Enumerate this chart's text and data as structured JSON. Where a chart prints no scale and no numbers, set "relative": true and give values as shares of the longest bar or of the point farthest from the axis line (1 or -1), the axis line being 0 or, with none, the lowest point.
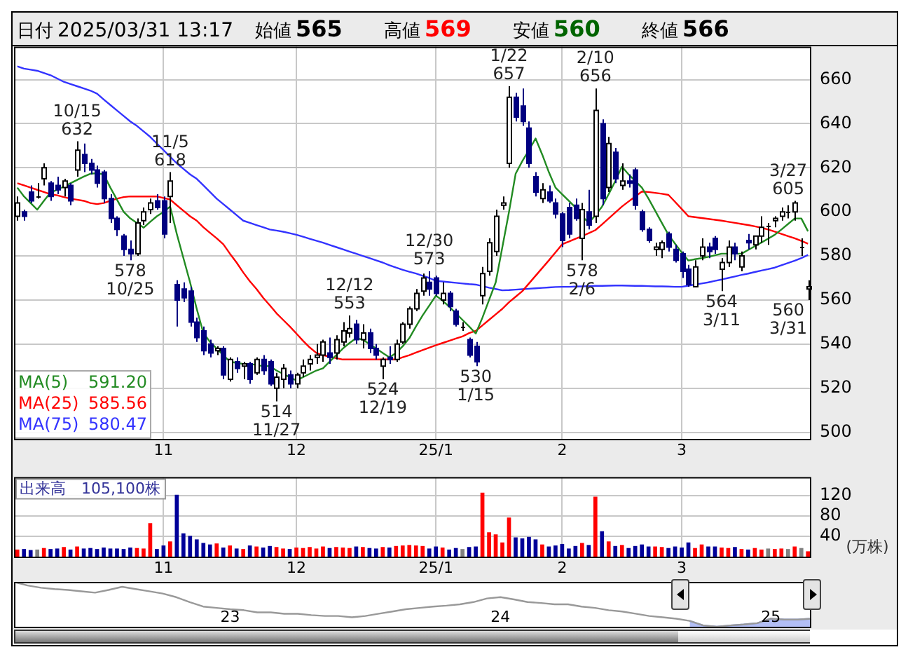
{
  "chart_data": [
    {
      "type": "other",
      "categories": [
        "日付",
        "始値",
        "高値",
        "安値",
        "終値"
      ],
      "value_labels": [
        "2025/03/31 13:17",
        "565",
        "569",
        "560",
        "566"
      ],
      "colors": [
        "#000000",
        "#000000",
        "#ff0000",
        "#006400",
        "#000000"
      ]
    },
    {
      "type": "candlestick",
      "legend": "bottom left",
      "grid": true,
      "ylim": [
        497,
        675
      ],
      "yticks": [
        500,
        520,
        540,
        560,
        580,
        600,
        620,
        640,
        660
      ],
      "categories": [
        null,
        null,
        null,
        null,
        null,
        null,
        null,
        null,
        null,
        null,
        null,
        null,
        null,
        null,
        null,
        null,
        null,
        null,
        null,
        null,
        null,
        null,
        "11",
        null,
        null,
        null,
        null,
        null,
        null,
        null,
        null,
        null,
        null,
        null,
        null,
        null,
        null,
        null,
        null,
        null,
        null,
        null,
        "12",
        null,
        null,
        null,
        null,
        null,
        null,
        null,
        null,
        null,
        null,
        null,
        null,
        null,
        null,
        null,
        null,
        null,
        null,
        null,
        null,
        "25/1",
        null,
        null,
        null,
        null,
        null,
        null,
        null,
        null,
        null,
        null,
        null,
        null,
        null,
        null,
        null,
        null,
        null,
        null,
        "2",
        null,
        null,
        null,
        null,
        null,
        null,
        null,
        null,
        null,
        null,
        null,
        null,
        null,
        null,
        null,
        null,
        null,
        "3",
        null,
        null,
        null,
        null,
        null,
        null,
        null,
        null,
        null,
        null,
        null,
        null,
        null,
        null,
        null,
        null,
        null,
        null,
        null
      ],
      "ohlc": [
        [
          598,
          607,
          596,
          604
        ],
        [
          600,
          601,
          596,
          598
        ],
        [
          609,
          612,
          604,
          605
        ],
        [
          607,
          613,
          606,
          607
        ],
        [
          615,
          622,
          612,
          620
        ],
        [
          613,
          614,
          605,
          607
        ],
        [
          612,
          616,
          608,
          610
        ],
        [
          611,
          615,
          607,
          614
        ],
        [
          612,
          613,
          603,
          605
        ],
        [
          619,
          632,
          616,
          628
        ],
        [
          626,
          631,
          618,
          622
        ],
        [
          622,
          624,
          617,
          619
        ],
        [
          619,
          621,
          611,
          613
        ],
        [
          618,
          619,
          604,
          606
        ],
        [
          606,
          608,
          595,
          597
        ],
        [
          597,
          598,
          589,
          592
        ],
        [
          589,
          590,
          580,
          583
        ],
        [
          583,
          587,
          578,
          581
        ],
        [
          581,
          597,
          580,
          595
        ],
        [
          596,
          602,
          594,
          600
        ],
        [
          601,
          606,
          599,
          604
        ],
        [
          605,
          608,
          601,
          602
        ],
        [
          605,
          607,
          588,
          590
        ],
        [
          607,
          618,
          595,
          614
        ],
        [
          567,
          569,
          548,
          560
        ],
        [
          565,
          568,
          559,
          561
        ],
        [
          564,
          566,
          548,
          550
        ],
        [
          550,
          552,
          541,
          543
        ],
        [
          546,
          548,
          535,
          537
        ],
        [
          540,
          542,
          534,
          536
        ],
        [
          537,
          539,
          535,
          538
        ],
        [
          538,
          539,
          524,
          526
        ],
        [
          524,
          534,
          523,
          533
        ],
        [
          532,
          534,
          527,
          529
        ],
        [
          530,
          532,
          524,
          531
        ],
        [
          531,
          532,
          522,
          524
        ],
        [
          527,
          534,
          526,
          533
        ],
        [
          533,
          535,
          526,
          528
        ],
        [
          532,
          533,
          521,
          522
        ],
        [
          520,
          527,
          514,
          525
        ],
        [
          524,
          531,
          520,
          529
        ],
        [
          526,
          528,
          520,
          522
        ],
        [
          522,
          527,
          520,
          526
        ],
        [
          527,
          533,
          525,
          530
        ],
        [
          531,
          535,
          528,
          533
        ],
        [
          534,
          540,
          531,
          535
        ],
        [
          535,
          542,
          532,
          541
        ],
        [
          536,
          543,
          531,
          534
        ],
        [
          536,
          544,
          533,
          542
        ],
        [
          541,
          550,
          539,
          546
        ],
        [
          545,
          553,
          543,
          547
        ],
        [
          549,
          551,
          540,
          542
        ],
        [
          542,
          549,
          538,
          545
        ],
        [
          545,
          547,
          536,
          538
        ],
        [
          538,
          540,
          533,
          535
        ],
        [
          530,
          534,
          524,
          533
        ],
        [
          534,
          539,
          531,
          533
        ],
        [
          533,
          542,
          532,
          540
        ],
        [
          541,
          550,
          540,
          549
        ],
        [
          549,
          557,
          547,
          556
        ],
        [
          556,
          565,
          555,
          563
        ],
        [
          564,
          572,
          562,
          570
        ],
        [
          568,
          573,
          562,
          565
        ],
        [
          570,
          571,
          562,
          563
        ],
        [
          560,
          568,
          558,
          563
        ],
        [
          563,
          564,
          555,
          557
        ],
        [
          555,
          556,
          548,
          549
        ],
        [
          548,
          550,
          546,
          548
        ],
        [
          542,
          543,
          534,
          535
        ],
        [
          539,
          541,
          530,
          532
        ],
        [
          562,
          575,
          558,
          572
        ],
        [
          573,
          588,
          571,
          586
        ],
        [
          582,
          601,
          580,
          598
        ],
        [
          603,
          607,
          601,
          604
        ],
        [
          622,
          657,
          620,
          652
        ],
        [
          652,
          654,
          641,
          643
        ],
        [
          648,
          656,
          639,
          641
        ],
        [
          638,
          641,
          620,
          622
        ],
        [
          616,
          618,
          607,
          609
        ],
        [
          606,
          613,
          604,
          610
        ],
        [
          609,
          612,
          604,
          605
        ],
        [
          604,
          606,
          597,
          599
        ],
        [
          599,
          600,
          584,
          587
        ],
        [
          602,
          604,
          588,
          590
        ],
        [
          603,
          606,
          596,
          597
        ],
        [
          588,
          604,
          578,
          601
        ],
        [
          600,
          610,
          592,
          594
        ],
        [
          598,
          656,
          595,
          646
        ],
        [
          640,
          642,
          603,
          606
        ],
        [
          611,
          634,
          609,
          631
        ],
        [
          627,
          629,
          613,
          615
        ],
        [
          612,
          622,
          610,
          614
        ],
        [
          614,
          617,
          611,
          613
        ],
        [
          619,
          620,
          601,
          603
        ],
        [
          600,
          601,
          591,
          592
        ],
        [
          592,
          593,
          586,
          587
        ],
        [
          583,
          586,
          580,
          584
        ],
        [
          583,
          587,
          579,
          586
        ],
        [
          590,
          591,
          582,
          584
        ],
        [
          583,
          585,
          577,
          578
        ],
        [
          581,
          582,
          570,
          573
        ],
        [
          574,
          576,
          566,
          567
        ],
        [
          566,
          578,
          566,
          575
        ],
        [
          580,
          588,
          578,
          584
        ],
        [
          584,
          586,
          579,
          582
        ],
        [
          588,
          589,
          581,
          583
        ],
        [
          574,
          579,
          564,
          577
        ],
        [
          577,
          587,
          575,
          584
        ],
        [
          584,
          586,
          578,
          581
        ],
        [
          575,
          582,
          573,
          580
        ],
        [
          587,
          590,
          583,
          586
        ],
        [
          585,
          589,
          583,
          589
        ],
        [
          589,
          598,
          586,
          593
        ],
        [
          594,
          595,
          585,
          594
        ],
        [
          596,
          598,
          593,
          597
        ],
        [
          598,
          602,
          596,
          600
        ],
        [
          600,
          603,
          597,
          600
        ],
        [
          600,
          605,
          596,
          604
        ],
        [
          584,
          588,
          580,
          584
        ],
        [
          565,
          569,
          560,
          566
        ]
      ],
      "annotations": [
        "591.20",
        "585.56",
        "580.47"
      ],
      "colors": [
        "#000000",
        "#000080",
        "#000080",
        "#000000",
        "#000000",
        "#000080",
        "#000080",
        "#000000",
        "#000080",
        "#000000",
        "#000080",
        "#000080",
        "#000080",
        "#000080",
        "#000080",
        "#000080",
        "#000080",
        "#000080",
        "#000000",
        "#000000",
        "#000000",
        "#000080",
        "#000080",
        "#000000",
        "#000080",
        "#000080",
        "#000080",
        "#000080",
        "#000080",
        "#000080",
        "#000000",
        "#000080",
        "#000000",
        "#000080",
        "#000000",
        "#000080",
        "#000000",
        "#000080",
        "#000080",
        "#000000",
        "#000000",
        "#000080",
        "#000000",
        "#000000",
        "#000000",
        "#000000",
        "#000000",
        "#000080",
        "#000000",
        "#000000",
        "#000000",
        "#000080",
        "#000000",
        "#000080",
        "#000080",
        "#000000",
        "#000080",
        "#000000",
        "#000000",
        "#000000",
        "#000000",
        "#000000",
        "#000080",
        "#000080",
        "#000000",
        "#000080",
        "#000080",
        "#000000",
        "#000080",
        "#000080",
        "#000000",
        "#000000",
        "#000000",
        "#000000",
        "#000000",
        "#000080",
        "#000080",
        "#000080",
        "#000080",
        "#000000",
        "#000080",
        "#000080",
        "#000080",
        "#000080",
        "#000080",
        "#000000",
        "#000080",
        "#000000",
        "#000080",
        "#000000",
        "#000080",
        "#000000",
        "#000080",
        "#000080",
        "#000080",
        "#000080",
        "#000000",
        "#000000",
        "#000080",
        "#000080",
        "#000080",
        "#000080",
        "#000000",
        "#000000",
        "#000080",
        "#000080",
        "#000000",
        "#000000",
        "#000080",
        "#000000",
        "#000080",
        "#000000",
        "#000000",
        "#000000",
        "#000000",
        "#000000",
        "#000000",
        "#000000",
        "#000000",
        "#000000"
      ],
      "value_labels": [
        null,
        null,
        null,
        null,
        null,
        null,
        null,
        null,
        null,
        "10/15\n632",
        null,
        null,
        null,
        null,
        null,
        null,
        null,
        "578\n10/25",
        null,
        null,
        null,
        null,
        null,
        "11/5\n618",
        null,
        null,
        null,
        null,
        null,
        null,
        null,
        null,
        null,
        null,
        null,
        null,
        null,
        null,
        null,
        "514\n11/27",
        null,
        null,
        null,
        null,
        null,
        null,
        null,
        null,
        null,
        null,
        "12/12\n553",
        null,
        null,
        null,
        null,
        "524\n12/19",
        null,
        null,
        null,
        null,
        null,
        null,
        "12/30\n573",
        null,
        null,
        null,
        null,
        null,
        null,
        "530\n1/15",
        null,
        null,
        null,
        null,
        "1/22\n657",
        null,
        null,
        null,
        null,
        null,
        null,
        null,
        null,
        null,
        null,
        "578\n2/6",
        null,
        "2/10\n656",
        null,
        null,
        null,
        null,
        null,
        null,
        null,
        null,
        null,
        null,
        null,
        null,
        null,
        null,
        null,
        null,
        null,
        null,
        "564\n3/11",
        null,
        null,
        null,
        null,
        null,
        null,
        null,
        null,
        null,
        null,
        "3/27\n605",
        null,
        "560\n3/31"
      ],
      "series": [
        {
          "name": "MA(5)",
          "type": "line",
          "color": "#228b22",
          "values": [
            611,
            607,
            604,
            601,
            605,
            608.8,
            610,
            611.5,
            613,
            614.5,
            616,
            617.3,
            617.5,
            617,
            611,
            605.5,
            600,
            597,
            595,
            592.8,
            595.5,
            598,
            600,
            602.4,
            590,
            579,
            568,
            556,
            545,
            541,
            538,
            535,
            532,
            531.5,
            531,
            531,
            530.5,
            530,
            530,
            528,
            526.5,
            525,
            523.5,
            525,
            526.5,
            528,
            529,
            532,
            535,
            538,
            540.5,
            542.7,
            542,
            540,
            538,
            536,
            534,
            536,
            539,
            542.7,
            548,
            553,
            557.5,
            562,
            559.7,
            557,
            554,
            551,
            548,
            544.8,
            552,
            560,
            568,
            584,
            600,
            617.3,
            623,
            628,
            633.3,
            626,
            618,
            611,
            608,
            605,
            602,
            598,
            595,
            598.5,
            602.4,
            608,
            614,
            620.5,
            617,
            614,
            611,
            606,
            600.5,
            595,
            589.6,
            585.5,
            581.5,
            577.9,
            578.5,
            579,
            579.6,
            580.3,
            581,
            581,
            581,
            581,
            582.7,
            584.4,
            586.1,
            587.8,
            589.6,
            592,
            594.5,
            597,
            597,
            591.2
          ]
        },
        {
          "name": "MA(25)",
          "type": "line",
          "color": "#ff0000",
          "values": [
            613,
            612,
            611,
            610,
            609,
            608,
            607.5,
            606.7,
            606,
            605.5,
            605,
            604,
            603.5,
            604,
            605,
            606,
            606.7,
            607,
            607,
            607,
            607,
            607,
            606.3,
            605.6,
            603,
            600.5,
            598,
            596,
            593,
            590.5,
            588,
            585.3,
            581,
            577,
            572.5,
            568.5,
            565,
            561,
            557.6,
            554,
            551,
            548,
            544.8,
            541.5,
            538.5,
            536,
            535,
            534.3,
            533.6,
            533,
            533,
            533,
            533,
            533,
            533,
            533,
            533,
            533,
            534,
            535,
            536.2,
            537.3,
            538.4,
            539.5,
            540.5,
            541.5,
            542.5,
            543.5,
            545,
            546,
            548.5,
            551,
            553.5,
            556,
            559,
            561.5,
            564,
            567.5,
            571,
            574.5,
            578,
            581.6,
            585.3,
            586.5,
            587.8,
            589,
            590.3,
            591.7,
            594.3,
            597,
            599.7,
            602.4,
            604.7,
            607,
            609.2,
            609,
            608.6,
            608.2,
            607.7,
            604.5,
            601.3,
            598,
            597.6,
            597.2,
            596.8,
            596.4,
            596,
            595.5,
            595,
            594.5,
            594,
            593.4,
            592.8,
            592,
            591,
            590,
            589,
            588,
            586.8,
            585.56
          ]
        },
        {
          "name": "MA(75)",
          "type": "line",
          "color": "#3333ff",
          "values": [
            666,
            665,
            664.5,
            664,
            663,
            662,
            660.5,
            659,
            658,
            657,
            656,
            655,
            653.6,
            651,
            648.5,
            646,
            643.5,
            641,
            639,
            636.5,
            634,
            631,
            628,
            625,
            622,
            619.5,
            617,
            615,
            612,
            609,
            606,
            603.5,
            601,
            598.5,
            596,
            595,
            594,
            593,
            592,
            591.5,
            591,
            590.3,
            589.6,
            588.7,
            587.8,
            586.9,
            586,
            585,
            584,
            583,
            582,
            581,
            580,
            579,
            578,
            577,
            575.8,
            574.7,
            573.7,
            572.8,
            572,
            571,
            570,
            568.7,
            568.4,
            568.1,
            567.8,
            567.5,
            567.2,
            567,
            566.3,
            565.6,
            565,
            564.4,
            564.5,
            564.7,
            564.9,
            565.1,
            565.3,
            565.5,
            565.7,
            565.9,
            566,
            566,
            566.1,
            566.2,
            566.3,
            566.4,
            566.4,
            566.5,
            566.6,
            566.6,
            566.5,
            566.4,
            566.4,
            566.3,
            566.2,
            566.2,
            566.1,
            566,
            566,
            566.5,
            567,
            567.5,
            568,
            568.7,
            569.3,
            570,
            570.7,
            571.4,
            572,
            572.7,
            573.4,
            574,
            574.7,
            575.8,
            576.8,
            577.8,
            579,
            580.47
          ]
        }
      ]
    },
    {
      "type": "bar",
      "title": "出来高　105,100株",
      "ylabel": "(万株)",
      "grid": true,
      "ylim": [
        0,
        157
      ],
      "yticks": [
        40,
        80,
        120
      ],
      "categories": [
        null,
        null,
        null,
        null,
        null,
        null,
        null,
        null,
        null,
        null,
        null,
        null,
        null,
        null,
        null,
        null,
        null,
        null,
        null,
        null,
        null,
        null,
        "11",
        null,
        null,
        null,
        null,
        null,
        null,
        null,
        null,
        null,
        null,
        null,
        null,
        null,
        null,
        null,
        null,
        null,
        null,
        null,
        "12",
        null,
        null,
        null,
        null,
        null,
        null,
        null,
        null,
        null,
        null,
        null,
        null,
        null,
        null,
        null,
        null,
        null,
        null,
        null,
        null,
        "25/1",
        null,
        null,
        null,
        null,
        null,
        null,
        null,
        null,
        null,
        null,
        null,
        null,
        null,
        null,
        null,
        null,
        null,
        null,
        "2",
        null,
        null,
        null,
        null,
        null,
        null,
        null,
        null,
        null,
        null,
        null,
        null,
        null,
        null,
        null,
        null,
        null,
        "3",
        null,
        null,
        null,
        null,
        null,
        null,
        null,
        null,
        null,
        null,
        null,
        null,
        null,
        null,
        null,
        null,
        null,
        null,
        null
      ],
      "values": [
        14,
        15,
        13,
        14,
        17,
        15,
        16,
        19,
        14,
        20,
        16,
        17,
        15,
        18,
        16,
        16,
        15,
        18,
        17,
        16,
        66,
        15,
        22,
        30,
        122,
        46,
        41,
        34,
        27,
        24,
        26,
        18,
        22,
        16,
        15,
        22,
        20,
        18,
        21,
        19,
        16,
        15,
        18,
        17,
        19,
        16,
        20,
        17,
        19,
        18,
        17,
        20,
        19,
        17,
        16,
        19,
        18,
        21,
        22,
        23,
        22,
        21,
        16,
        20,
        18,
        14,
        17,
        15,
        19,
        20,
        126,
        48,
        44,
        28,
        77,
        38,
        36,
        39,
        34,
        24,
        20,
        22,
        25,
        16,
        21,
        27,
        23,
        118,
        50,
        30,
        21,
        23,
        17,
        21,
        24,
        20,
        20,
        19,
        17,
        20,
        18,
        28,
        17,
        24,
        20,
        20,
        18,
        17,
        19,
        15,
        14,
        17,
        14,
        16,
        15,
        16,
        15,
        20,
        17,
        10.51
      ],
      "colors": [
        "#ff0000",
        "#000099",
        "#000099",
        "#808080",
        "#ff0000",
        "#000099",
        "#000099",
        "#ff0000",
        "#000099",
        "#ff0000",
        "#000099",
        "#000099",
        "#000099",
        "#000099",
        "#000099",
        "#000099",
        "#000099",
        "#000099",
        "#ff0000",
        "#ff0000",
        "#ff0000",
        "#000099",
        "#000099",
        "#ff0000",
        "#000099",
        "#000099",
        "#000099",
        "#000099",
        "#000099",
        "#000099",
        "#ff0000",
        "#000099",
        "#ff0000",
        "#000099",
        "#ff0000",
        "#000099",
        "#ff0000",
        "#000099",
        "#000099",
        "#ff0000",
        "#ff0000",
        "#000099",
        "#ff0000",
        "#ff0000",
        "#ff0000",
        "#ff0000",
        "#ff0000",
        "#000099",
        "#ff0000",
        "#ff0000",
        "#ff0000",
        "#000099",
        "#ff0000",
        "#000099",
        "#000099",
        "#ff0000",
        "#000099",
        "#ff0000",
        "#ff0000",
        "#ff0000",
        "#ff0000",
        "#ff0000",
        "#000099",
        "#000099",
        "#ff0000",
        "#000099",
        "#000099",
        "#808080",
        "#000099",
        "#000099",
        "#ff0000",
        "#ff0000",
        "#ff0000",
        "#ff0000",
        "#ff0000",
        "#000099",
        "#000099",
        "#000099",
        "#000099",
        "#ff0000",
        "#000099",
        "#000099",
        "#000099",
        "#000099",
        "#000099",
        "#ff0000",
        "#000099",
        "#ff0000",
        "#000099",
        "#ff0000",
        "#000099",
        "#ff0000",
        "#000099",
        "#000099",
        "#000099",
        "#000099",
        "#ff0000",
        "#ff0000",
        "#000099",
        "#000099",
        "#000099",
        "#000099",
        "#ff0000",
        "#ff0000",
        "#000099",
        "#000099",
        "#ff0000",
        "#ff0000",
        "#000099",
        "#ff0000",
        "#000099",
        "#ff0000",
        "#ff0000",
        "#808080",
        "#ff0000",
        "#ff0000",
        "#808080",
        "#ff0000",
        "#808080",
        "#ff0000"
      ]
    },
    {
      "type": "line",
      "relative": true,
      "tick_labels": "x",
      "categories": [
        null,
        null,
        null,
        null,
        null,
        null,
        null,
        null,
        null,
        null,
        null,
        null,
        null,
        null,
        null,
        null,
        "23",
        null,
        null,
        null,
        null,
        null,
        null,
        null,
        null,
        null,
        null,
        null,
        null,
        null,
        null,
        null,
        null,
        null,
        null,
        null,
        "24",
        null,
        null,
        null,
        null,
        null,
        null,
        null,
        null,
        null,
        null,
        null,
        null,
        null,
        null,
        null,
        null,
        null,
        null,
        null,
        "25",
        null,
        null,
        null
      ],
      "series": [
        {
          "type": "line",
          "color": "#999999",
          "values": [
            1,
            0.92,
            0.87,
            0.84,
            0.82,
            0.79,
            0.76,
            0.82,
            0.89,
            0.84,
            0.79,
            0.74,
            0.66,
            0.55,
            0.45,
            0.42,
            0.39,
            0.37,
            0.32,
            0.32,
            0.29,
            0.29,
            0.26,
            0.24,
            0.24,
            0.21,
            0.24,
            0.29,
            0.34,
            0.39,
            0.42,
            0.45,
            0.47,
            0.5,
            0.55,
            0.63,
            0.66,
            0.61,
            0.55,
            0.53,
            0.5,
            0.5,
            0.45,
            0.42,
            0.37,
            0.34,
            0.29,
            0.24,
            0.21,
            0.18,
            0.13,
            0.03,
            0,
            0.03,
            0.05,
            0.08,
            0.18,
            0.16,
            0.16,
            0.18
          ]
        },
        {
          "type": "area",
          "color": "#8c9ef0",
          "values": [
            null,
            null,
            null,
            null,
            null,
            null,
            null,
            null,
            null,
            null,
            null,
            null,
            null,
            null,
            null,
            null,
            null,
            null,
            null,
            null,
            null,
            null,
            null,
            null,
            null,
            null,
            null,
            null,
            null,
            null,
            null,
            null,
            null,
            null,
            null,
            null,
            null,
            null,
            null,
            null,
            null,
            null,
            null,
            null,
            null,
            null,
            null,
            null,
            null,
            null,
            0.13,
            0.03,
            0,
            0.03,
            0.05,
            0.08,
            0.18,
            0.16,
            0.16,
            0.18
          ]
        }
      ]
    }
  ]
}
